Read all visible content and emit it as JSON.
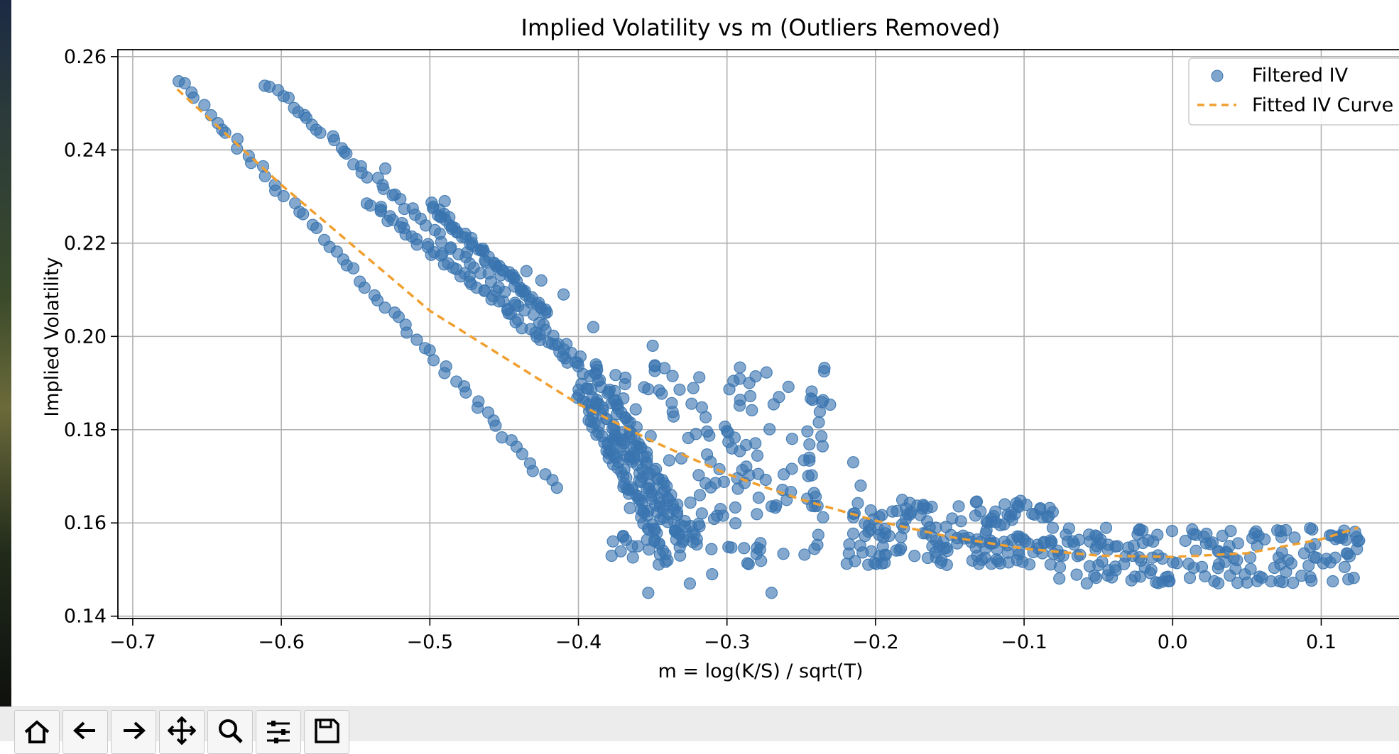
{
  "chart_data": {
    "type": "scatter",
    "title": "Implied Volatility vs m (Outliers Removed)",
    "xlabel": "m = log(K/S) / sqrt(T)",
    "ylabel": "Implied Volatility",
    "xlim": [
      -0.71,
      0.16
    ],
    "ylim": [
      0.1395,
      0.2615
    ],
    "xticks": [
      -0.7,
      -0.6,
      -0.5,
      -0.4,
      -0.3,
      -0.2,
      -0.1,
      0.0,
      0.1
    ],
    "xtick_labels": [
      "−0.7",
      "−0.6",
      "−0.5",
      "−0.4",
      "−0.3",
      "−0.2",
      "−0.1",
      "0.0",
      "0.1"
    ],
    "yticks": [
      0.14,
      0.16,
      0.18,
      0.2,
      0.22,
      0.24,
      0.26
    ],
    "ytick_labels": [
      "0.14",
      "0.16",
      "0.18",
      "0.20",
      "0.22",
      "0.24",
      "0.26"
    ],
    "grid": true,
    "legend_position": "top-right",
    "series": [
      {
        "name": "Filtered IV",
        "kind": "scatter",
        "color": "#3a75b0",
        "bands": [
          {
            "from": [
              -0.67,
              0.255
            ],
            "to": [
              -0.415,
              0.167
            ]
          },
          {
            "from": [
              -0.61,
              0.2545
            ],
            "to": [
              -0.4,
              0.195
            ]
          },
          {
            "from": [
              -0.4,
              0.188
            ],
            "to": [
              -0.34,
              0.152
            ]
          },
          {
            "from": [
              -0.54,
              0.229
            ],
            "to": [
              -0.395,
              0.192
            ]
          },
          {
            "from": [
              -0.395,
              0.19
            ],
            "to": [
              -0.33,
              0.155
            ]
          },
          {
            "from": [
              -0.5,
              0.228
            ],
            "to": [
              -0.42,
              0.205
            ]
          },
          {
            "from": [
              -0.39,
              0.194
            ],
            "to": [
              -0.32,
              0.155
            ]
          }
        ],
        "clusters": [
          {
            "x_range": [
              -0.38,
              -0.23
            ],
            "y_range": [
              0.151,
              0.195
            ]
          },
          {
            "x_range": [
              -0.22,
              -0.08
            ],
            "y_range": [
              0.151,
              0.165
            ]
          },
          {
            "x_range": [
              -0.08,
              0.13
            ],
            "y_range": [
              0.147,
              0.159
            ]
          }
        ],
        "points": [
          [
            -0.53,
            0.236
          ],
          [
            -0.49,
            0.229
          ],
          [
            -0.475,
            0.218
          ],
          [
            -0.455,
            0.215
          ],
          [
            -0.435,
            0.214
          ],
          [
            -0.425,
            0.212
          ],
          [
            -0.41,
            0.209
          ],
          [
            -0.39,
            0.202
          ],
          [
            -0.35,
            0.198
          ],
          [
            -0.285,
            0.19
          ],
          [
            -0.265,
            0.187
          ],
          [
            -0.37,
            0.157
          ],
          [
            -0.36,
            0.155
          ],
          [
            -0.353,
            0.145
          ],
          [
            -0.325,
            0.147
          ],
          [
            -0.27,
            0.145
          ],
          [
            -0.31,
            0.149
          ],
          [
            -0.215,
            0.173
          ],
          [
            -0.21,
            0.168
          ]
        ]
      },
      {
        "name": "Fitted IV Curve",
        "kind": "line",
        "style": "dashed",
        "color": "#f0a030",
        "x": [
          -0.67,
          -0.6,
          -0.5,
          -0.4,
          -0.35,
          -0.3,
          -0.25,
          -0.2,
          -0.15,
          -0.1,
          -0.05,
          0.0,
          0.05,
          0.1,
          0.125
        ],
        "y": [
          0.253,
          0.2325,
          0.2055,
          0.1855,
          0.1775,
          0.1705,
          0.165,
          0.1605,
          0.157,
          0.1545,
          0.153,
          0.1527,
          0.1535,
          0.1565,
          0.159
        ]
      }
    ]
  },
  "toolbar": {
    "buttons": [
      "home-icon",
      "back-arrow-icon",
      "forward-arrow-icon",
      "pan-move-icon",
      "zoom-magnifier-icon",
      "configure-sliders-icon",
      "save-disk-icon"
    ]
  }
}
